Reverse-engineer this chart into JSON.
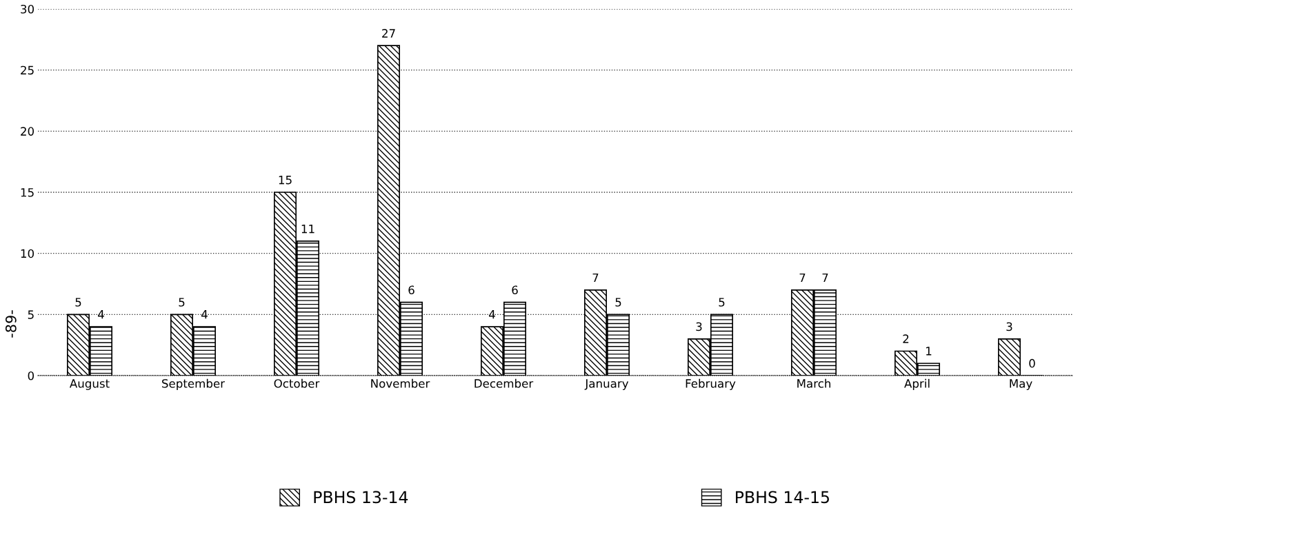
{
  "chart_data": {
    "type": "bar",
    "categories": [
      "August",
      "September",
      "October",
      "November",
      "December",
      "January",
      "February",
      "March",
      "April",
      "May"
    ],
    "series": [
      {
        "name": "PBHS 13-14",
        "color": "#000000",
        "values": [
          5,
          5,
          15,
          27,
          4,
          7,
          3,
          7,
          2,
          3
        ]
      },
      {
        "name": "PBHS 14-15",
        "color": "#000000",
        "values": [
          4,
          4,
          11,
          6,
          6,
          5,
          5,
          7,
          1,
          0
        ]
      }
    ],
    "ylim": [
      0,
      30
    ],
    "yticks": [
      0,
      5,
      10,
      15,
      20,
      25,
      30
    ],
    "grid": "y",
    "data_labels": true,
    "legend": "bottom",
    "annotations": [
      "-89-"
    ]
  }
}
